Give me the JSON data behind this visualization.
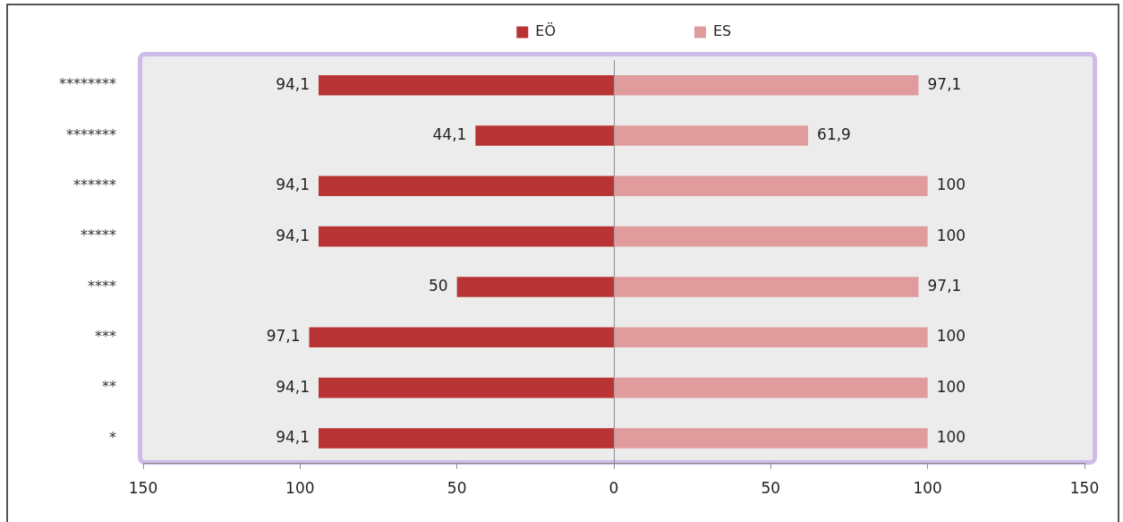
{
  "chart_data": [
    {
      "type": "bar",
      "orientation": "horizontal",
      "categories": [
        "********",
        "*******",
        "******",
        "*****",
        "****",
        "***",
        "**",
        "*"
      ],
      "series": [
        {
          "name": "EÖ",
          "color": "#b83434",
          "values": [
            94.1,
            44.1,
            94.1,
            94.1,
            50,
            97.1,
            94.1,
            94.1
          ],
          "value_labels": [
            "94,1",
            "44,1",
            "94,1",
            "94,1",
            "50",
            "97,1",
            "94,1",
            "94,1"
          ]
        }
      ],
      "xlim": [
        150,
        0
      ],
      "xticks": [
        150,
        100,
        50
      ],
      "legend": "top right"
    },
    {
      "type": "bar",
      "orientation": "horizontal",
      "categories": [
        "********",
        "*******",
        "******",
        "*****",
        "****",
        "***",
        "**",
        "*"
      ],
      "series": [
        {
          "name": "ES",
          "color": "#e09c9c",
          "values": [
            97.1,
            61.9,
            100,
            100,
            97.1,
            100,
            100,
            100
          ],
          "value_labels": [
            "97,1",
            "61,9",
            "100",
            "100",
            "97,1",
            "100",
            "100",
            "100"
          ]
        }
      ],
      "xlim": [
        0,
        150
      ],
      "xticks": [
        0,
        50,
        100,
        150
      ],
      "legend": "top left",
      "tick_labels": "x"
    }
  ]
}
